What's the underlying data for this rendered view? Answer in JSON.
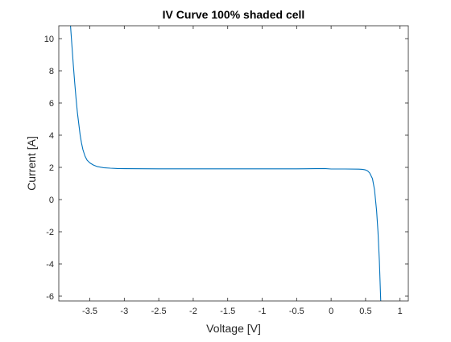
{
  "chart_data": {
    "type": "line",
    "title": "IV Curve 100% shaded cell",
    "xlabel": "Voltage [V]",
    "ylabel": "Current [A]",
    "xlim": [
      -3.95,
      1.12
    ],
    "ylim": [
      -6.3,
      10.8
    ],
    "xticks": [
      -3.5,
      -3,
      -2.5,
      -2,
      -1.5,
      -1,
      -0.5,
      0,
      0.5,
      1
    ],
    "xtick_labels": [
      "-3.5",
      "-3",
      "-2.5",
      "-2",
      "-1.5",
      "-1",
      "-0.5",
      "0",
      "0.5",
      "1"
    ],
    "yticks": [
      -6,
      -4,
      -2,
      0,
      2,
      4,
      6,
      8,
      10
    ],
    "ytick_labels": [
      "-6",
      "-4",
      "-2",
      "0",
      "2",
      "4",
      "6",
      "8",
      "10"
    ],
    "grid": false,
    "series": [
      {
        "color": "#0072BD",
        "x": [
          -3.78,
          -3.76,
          -3.74,
          -3.72,
          -3.7,
          -3.68,
          -3.66,
          -3.64,
          -3.62,
          -3.6,
          -3.57,
          -3.54,
          -3.5,
          -3.45,
          -3.4,
          -3.3,
          -3.2,
          -3.1,
          -3.0,
          -2.5,
          -2.0,
          -1.5,
          -1.0,
          -0.5,
          -0.1,
          0.0,
          0.2,
          0.4,
          0.45,
          0.48,
          0.5,
          0.53,
          0.56,
          0.6,
          0.63,
          0.66,
          0.68,
          0.7,
          0.72
        ],
        "y": [
          10.8,
          9.6,
          8.4,
          7.3,
          6.3,
          5.4,
          4.7,
          4.0,
          3.5,
          3.1,
          2.7,
          2.45,
          2.28,
          2.15,
          2.06,
          1.98,
          1.95,
          1.93,
          1.92,
          1.91,
          1.91,
          1.91,
          1.91,
          1.91,
          1.93,
          1.9,
          1.9,
          1.89,
          1.88,
          1.86,
          1.84,
          1.78,
          1.65,
          1.3,
          0.6,
          -0.7,
          -2.0,
          -3.8,
          -6.3
        ]
      }
    ]
  }
}
